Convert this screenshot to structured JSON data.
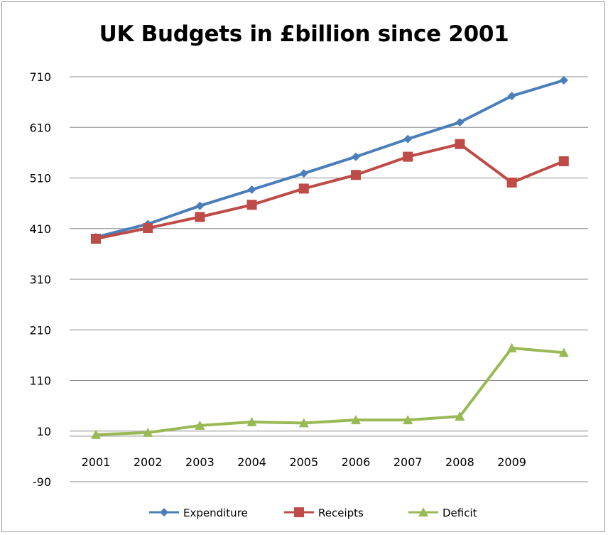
{
  "chart_data": {
    "type": "line",
    "title": "UK Budgets in £billion since 2001",
    "xlabel": "",
    "ylabel": "",
    "categories": [
      "2001",
      "2002",
      "2003",
      "2004",
      "2005",
      "2006",
      "2007",
      "2008",
      "2009",
      ""
    ],
    "y_ticks": [
      710,
      610,
      510,
      410,
      310,
      210,
      110,
      10,
      -90
    ],
    "ylim": [
      -90,
      710
    ],
    "grid": true,
    "legend_position": "bottom",
    "series": [
      {
        "name": "Expenditure",
        "color": "#4a7ebb",
        "marker": "diamond",
        "values": [
          393,
          419,
          455,
          487,
          519,
          552,
          587,
          620,
          672,
          703
        ]
      },
      {
        "name": "Receipts",
        "color": "#be4b48",
        "marker": "square",
        "values": [
          390,
          411,
          433,
          457,
          489,
          516,
          552,
          577,
          501,
          543
        ]
      },
      {
        "name": "Deficit",
        "color": "#98b954",
        "marker": "triangle",
        "values": [
          3,
          7,
          21,
          28,
          26,
          32,
          32,
          39,
          174,
          165
        ]
      }
    ]
  }
}
